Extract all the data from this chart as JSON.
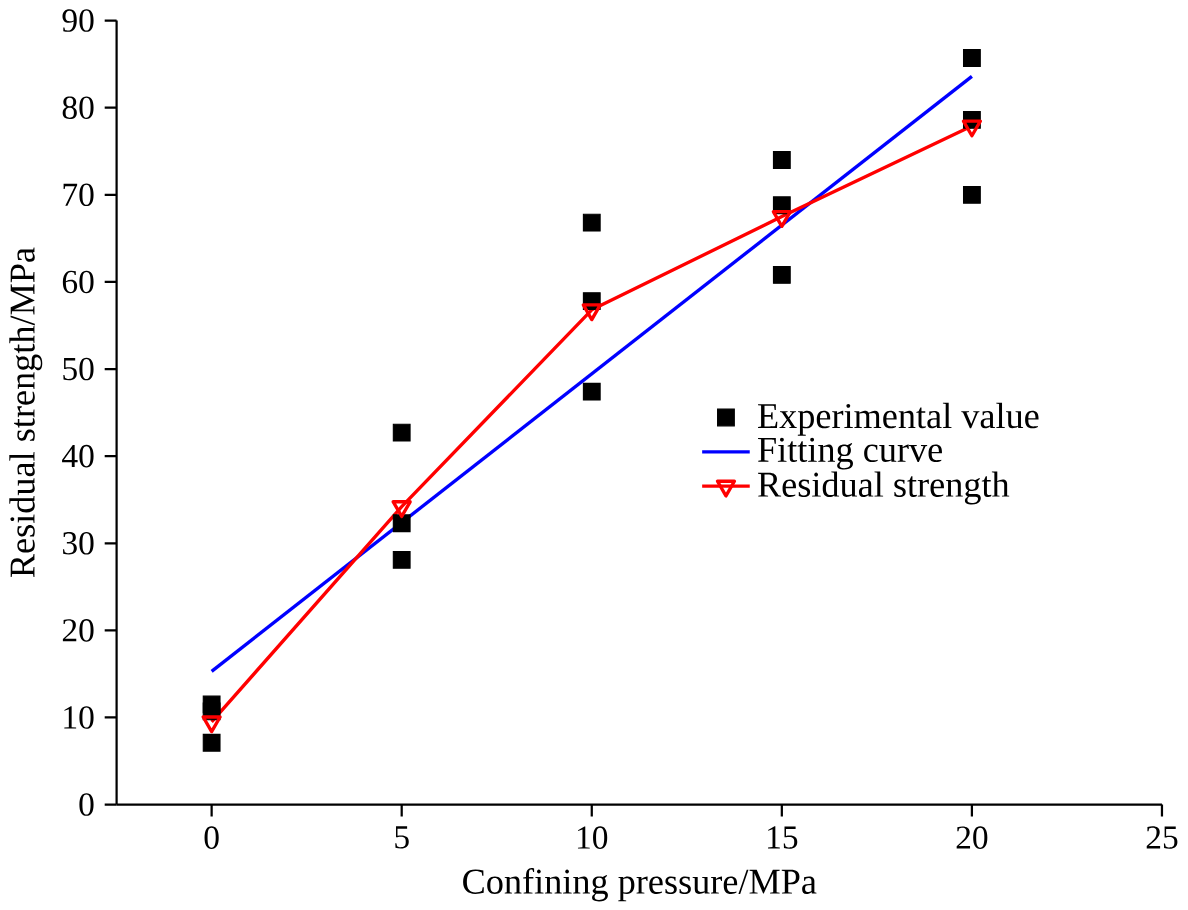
{
  "chart_data": {
    "type": "scatter",
    "xlabel": "Confining pressure/MPa",
    "ylabel": "Residual strength/MPa",
    "xlim": [
      -2.5,
      25
    ],
    "xticks": [
      0,
      5,
      10,
      15,
      20,
      25
    ],
    "ylim": [
      0,
      90
    ],
    "yticks": [
      0,
      10,
      20,
      30,
      40,
      50,
      60,
      70,
      80,
      90
    ],
    "legend": "right",
    "grid": false,
    "series": [
      {
        "name": "Experimental value",
        "marker": "square",
        "color": "#000000",
        "x": [
          0,
          0,
          0,
          5,
          5,
          5,
          10,
          10,
          10,
          15,
          15,
          15,
          20,
          20,
          20
        ],
        "values": [
          11.5,
          10.7,
          7.1,
          42.7,
          32.3,
          28.1,
          66.8,
          57.8,
          47.4,
          74,
          68.8,
          60.8,
          85.7,
          78.6,
          70
        ]
      },
      {
        "name": "Fitting curve",
        "type": "line",
        "marker": "none",
        "color": "#0000ff",
        "x": [
          0,
          20
        ],
        "values": [
          15.3,
          83.6
        ]
      },
      {
        "name": "Residual strength",
        "type": "line",
        "marker": "triangle",
        "color": "#ff0000",
        "x": [
          0,
          5,
          10,
          15,
          20
        ],
        "values": [
          9.5,
          34.2,
          56.8,
          67.5,
          77.9
        ]
      }
    ]
  }
}
